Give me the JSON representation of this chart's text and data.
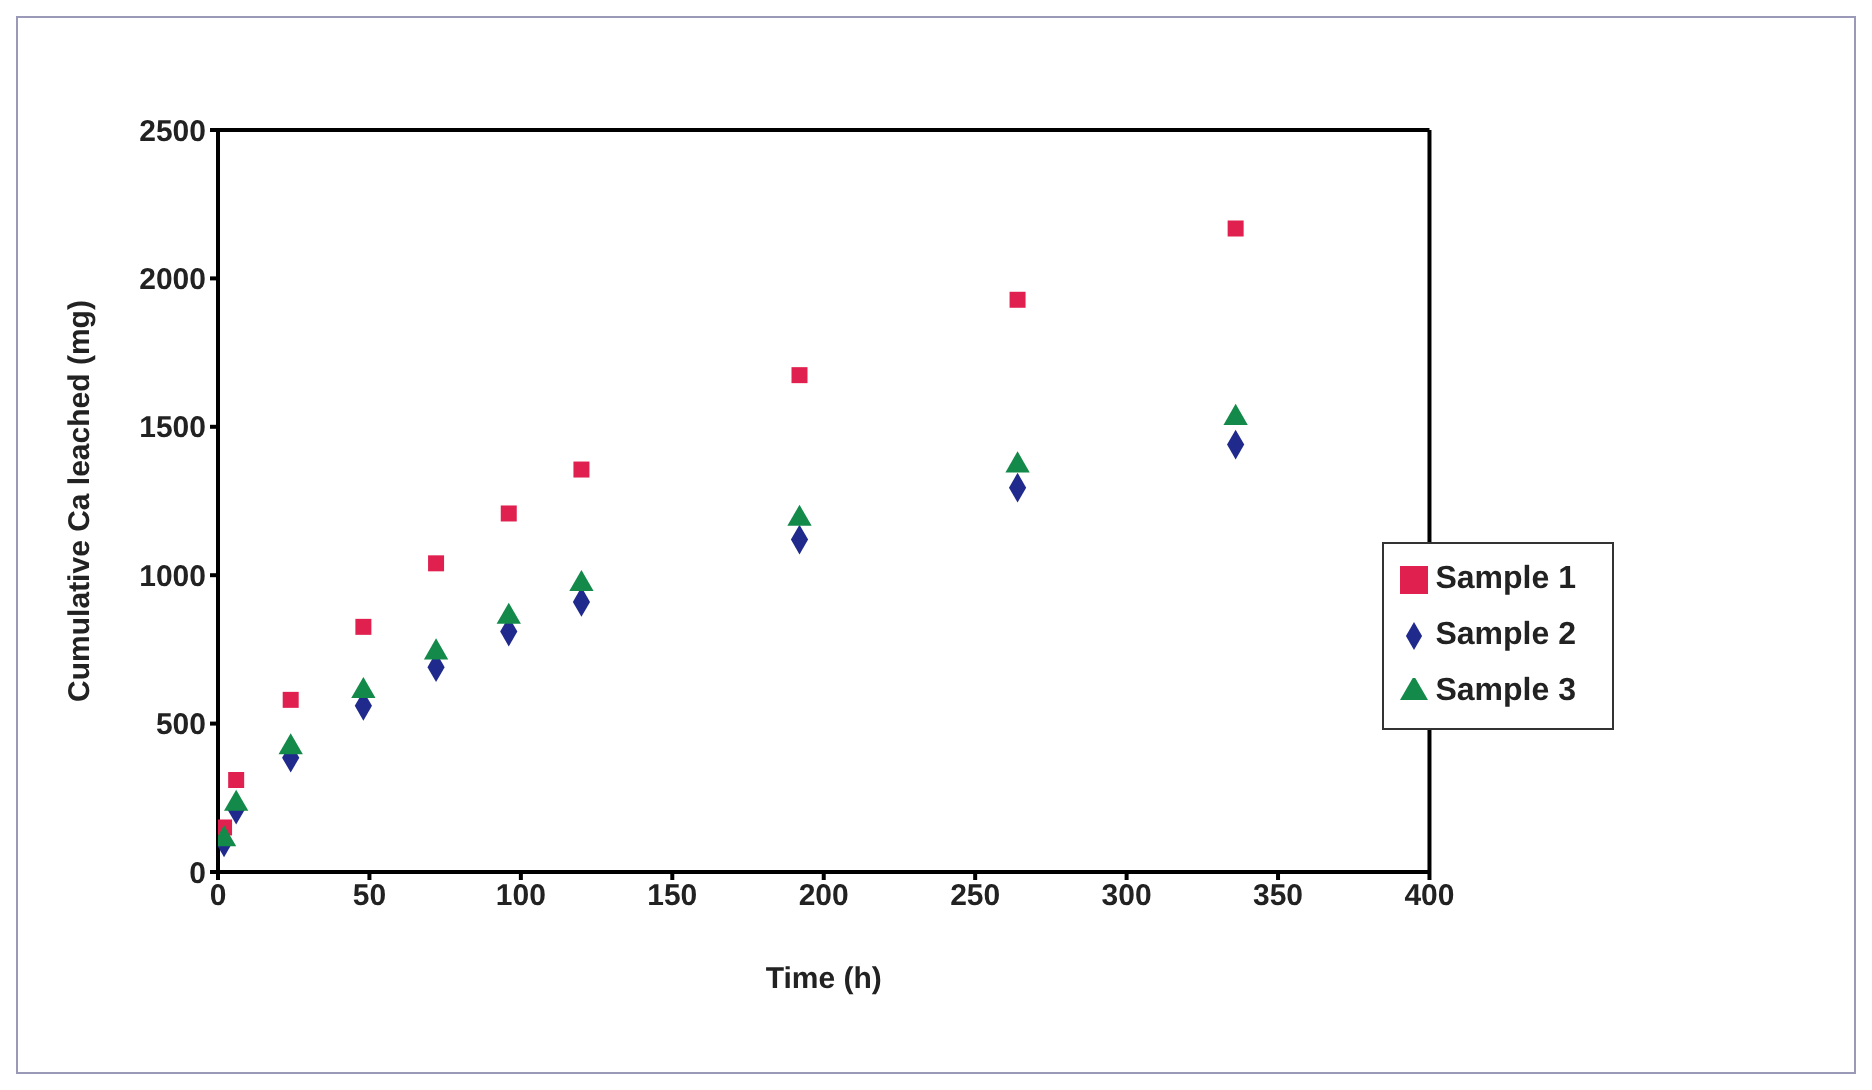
{
  "chart_data": {
    "type": "scatter",
    "xlabel": "Time (h)",
    "ylabel": "Cumulative Ca leached (mg)",
    "x": [
      2,
      6,
      24,
      48,
      72,
      96,
      120,
      192,
      264,
      336
    ],
    "series": [
      {
        "name": "Sample 1",
        "color": "#e0204f",
        "marker": "square",
        "values": [
          150,
          310,
          580,
          826,
          1040,
          1208,
          1356,
          1674,
          1928,
          2168
        ]
      },
      {
        "name": "Sample 2",
        "color": "#1f2a8c",
        "marker": "diamond",
        "values": [
          100,
          210,
          385,
          560,
          690,
          810,
          910,
          1120,
          1295,
          1440
        ]
      },
      {
        "name": "Sample 3",
        "color": "#138a4a",
        "marker": "triangle",
        "values": [
          110,
          230,
          420,
          610,
          740,
          860,
          970,
          1190,
          1370,
          1530
        ]
      }
    ],
    "xlim": [
      0,
      400
    ],
    "xticks": [
      0,
      50,
      100,
      150,
      200,
      250,
      300,
      350,
      400
    ],
    "ylim": [
      0,
      2500
    ],
    "yticks": [
      0,
      500,
      1000,
      1500,
      2000,
      2500
    ],
    "grid": false,
    "legend": "right"
  }
}
